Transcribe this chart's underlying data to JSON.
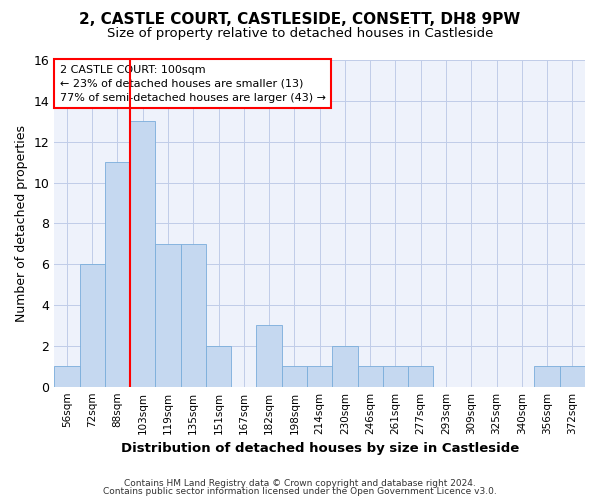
{
  "title": "2, CASTLE COURT, CASTLESIDE, CONSETT, DH8 9PW",
  "subtitle": "Size of property relative to detached houses in Castleside",
  "xlabel": "Distribution of detached houses by size in Castleside",
  "ylabel": "Number of detached properties",
  "categories": [
    "56sqm",
    "72sqm",
    "88sqm",
    "103sqm",
    "119sqm",
    "135sqm",
    "151sqm",
    "167sqm",
    "182sqm",
    "198sqm",
    "214sqm",
    "230sqm",
    "246sqm",
    "261sqm",
    "277sqm",
    "293sqm",
    "309sqm",
    "325sqm",
    "340sqm",
    "356sqm",
    "372sqm"
  ],
  "values": [
    1,
    6,
    11,
    13,
    7,
    7,
    2,
    0,
    3,
    1,
    1,
    2,
    1,
    1,
    1,
    0,
    0,
    0,
    0,
    1,
    1
  ],
  "bar_color": "#c5d8f0",
  "bar_edgecolor": "#7aaddb",
  "ylim": [
    0,
    16
  ],
  "yticks": [
    0,
    2,
    4,
    6,
    8,
    10,
    12,
    14,
    16
  ],
  "red_line_x": 2.5,
  "annotation_line1": "2 CASTLE COURT: 100sqm",
  "annotation_line2": "← 23% of detached houses are smaller (13)",
  "annotation_line3": "77% of semi-detached houses are larger (43) →",
  "footer1": "Contains HM Land Registry data © Crown copyright and database right 2024.",
  "footer2": "Contains public sector information licensed under the Open Government Licence v3.0.",
  "bg_color": "#eef2fb",
  "grid_color": "#c0cce8",
  "title_fontsize": 11,
  "subtitle_fontsize": 9.5
}
